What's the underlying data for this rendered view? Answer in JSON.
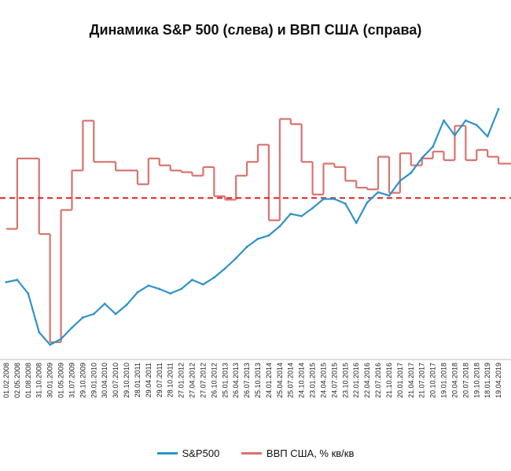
{
  "chart_data": {
    "type": "line",
    "title": "Динамика S&P 500 (слева) и ВВП США (справа)",
    "xlabel": "",
    "ylabel": "",
    "categories": [
      "01.02.2008",
      "02.05.2008",
      "01.08.2008",
      "31.10.2008",
      "30.01.2009",
      "01.05.2009",
      "31.07.2009",
      "29.10.2009",
      "29.01.2010",
      "30.04.2010",
      "30.07.2010",
      "29.10.2010",
      "28.01.2011",
      "29.04.2011",
      "29.07.2011",
      "28.10.2011",
      "27.01.2012",
      "27.04.2012",
      "27.07.2012",
      "26.10.2012",
      "25.01.2013",
      "26.04.2013",
      "26.07.2013",
      "25.10.2013",
      "24.01.2014",
      "25.04.2014",
      "25.07.2014",
      "24.10.2014",
      "23.01.2015",
      "24.04.2015",
      "24.07.2015",
      "23.10.2015",
      "22.01.2016",
      "22.04.2016",
      "22.07.2016",
      "21.10.2016",
      "20.01.2017",
      "21.04.2017",
      "21.07.2017",
      "20.10.2017",
      "19.01.2018",
      "20.04.2018",
      "20.07.2018",
      "19.10.2018",
      "18.01.2019",
      "19.04.2019"
    ],
    "series": [
      {
        "name": "S&P500",
        "color": "#2e93c9",
        "values": [
          1380,
          1400,
          1280,
          940,
          830,
          880,
          980,
          1070,
          1100,
          1190,
          1100,
          1180,
          1290,
          1350,
          1320,
          1280,
          1320,
          1400,
          1360,
          1420,
          1500,
          1590,
          1690,
          1760,
          1790,
          1870,
          1980,
          1960,
          2030,
          2110,
          2110,
          2070,
          1900,
          2080,
          2170,
          2140,
          2270,
          2340,
          2470,
          2570,
          2800,
          2670,
          2800,
          2760,
          2660,
          2900
        ]
      },
      {
        "name": "ВВП США, % кв/кв",
        "color": "#d9736e",
        "steps": [
          [
            0,
            -1.8
          ],
          [
            1,
            2.3
          ],
          [
            2,
            2.3
          ],
          [
            3,
            -2.1
          ],
          [
            4,
            -8.4
          ],
          [
            5,
            -0.7
          ],
          [
            6,
            1.6
          ],
          [
            7,
            4.5
          ],
          [
            8,
            2.1
          ],
          [
            9,
            2.1
          ],
          [
            10,
            1.6
          ],
          [
            11,
            1.6
          ],
          [
            12,
            0.8
          ],
          [
            13,
            2.3
          ],
          [
            14,
            1.9
          ],
          [
            15,
            1.6
          ],
          [
            16,
            1.5
          ],
          [
            17,
            1.3
          ],
          [
            18,
            1.8
          ],
          [
            19,
            0.1
          ],
          [
            20,
            -0.1
          ],
          [
            21,
            1.3
          ],
          [
            22,
            2.1
          ],
          [
            23,
            3.1
          ],
          [
            24,
            -1.3
          ],
          [
            25,
            4.6
          ],
          [
            26,
            4.3
          ],
          [
            27,
            2.1
          ],
          [
            28,
            0.2
          ],
          [
            29,
            2.0
          ],
          [
            30,
            1.8
          ],
          [
            31,
            1.0
          ],
          [
            32,
            0.6
          ],
          [
            33,
            0.5
          ],
          [
            34,
            2.4
          ],
          [
            35,
            0.3
          ],
          [
            36,
            2.6
          ],
          [
            37,
            1.9
          ],
          [
            38,
            2.3
          ],
          [
            39,
            2.7
          ],
          [
            40,
            2.2
          ],
          [
            41,
            4.2
          ],
          [
            42,
            2.2
          ],
          [
            43,
            2.8
          ],
          [
            44,
            2.4
          ],
          [
            45,
            2.0
          ]
        ]
      }
    ],
    "reference_line": {
      "value": 0,
      "color": "#e02020",
      "style": "dashed"
    },
    "grid": false,
    "legend": "bottom"
  }
}
